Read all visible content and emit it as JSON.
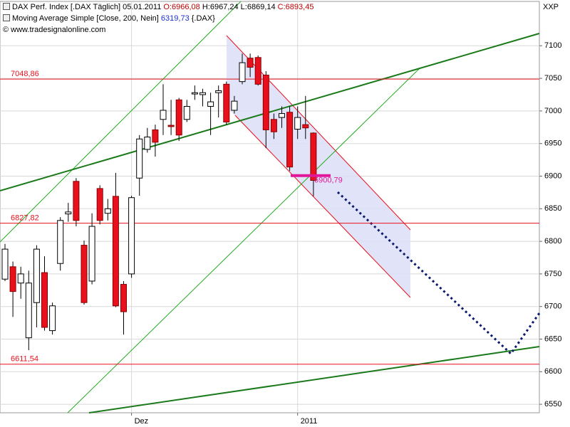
{
  "chart_data": {
    "type": "candlestick",
    "header": {
      "symbol": "DAX Perf. Index [.DAX  Täglich]",
      "date": "05.01.2011",
      "open": "O:6966,08",
      "high": "H:6967,24",
      "low": "L:6869,14",
      "close": "C:6893,45",
      "indicator": "Moving Average Simple [Close, 200, Nein]",
      "indicator_value": "6319,73",
      "indicator_symbol": "{.DAX}",
      "source": "© www.tradesignalonline.com"
    },
    "axis_label": "XXP",
    "categories": [
      null,
      null,
      null,
      null,
      null,
      null,
      null,
      null,
      null,
      null,
      null,
      null,
      null,
      null,
      null,
      null,
      "Dez",
      null,
      null,
      null,
      null,
      null,
      null,
      null,
      null,
      null,
      null,
      null,
      null,
      null,
      null,
      null,
      null,
      null,
      null,
      null,
      null,
      "2011",
      null,
      null
    ],
    "open": [
      6742,
      6761,
      6736,
      6652,
      6706,
      6752,
      6663,
      6766,
      6842,
      6892,
      6794,
      6739,
      6881,
      6843,
      6869,
      6734,
      6750,
      6897,
      6941,
      6971,
      6987,
      6978,
      7017,
      6987,
      7026,
      7025,
      7007,
      7028,
      7041,
      7001,
      7045,
      7081,
      7082,
      7055,
      6987,
      6990,
      6998,
      6972,
      6979,
      6966.08
    ],
    "high": [
      6796,
      6769,
      6761,
      6755,
      6794,
      6777,
      6706,
      6837,
      6859,
      6897,
      6801,
      6843,
      6886,
      6865,
      6905,
      6739,
      6870,
      6963,
      6974,
      6979,
      7041,
      7017,
      7020,
      7017,
      7039,
      7034,
      7028,
      7039,
      7045,
      7023,
      7088,
      7088,
      7085,
      7061,
      6996,
      7007,
      7007,
      7007,
      7023,
      6967.24
    ],
    "low": [
      6739,
      6684,
      6712,
      6633,
      6668,
      6663,
      6657,
      6755,
      6830,
      6823,
      6703,
      6734,
      6826,
      6832,
      6699,
      6657,
      6744,
      6870,
      6936,
      6930,
      6963,
      6963,
      6954,
      6983,
      7017,
      7007,
      6963,
      6990,
      6979,
      6996,
      7041,
      7052,
      7039,
      6943,
      6957,
      6974,
      6908,
      6957,
      6957,
      6869.14
    ],
    "close": [
      6788,
      6723,
      6750,
      6736,
      6788,
      6668,
      6701,
      6832,
      6845,
      6832,
      6706,
      6823,
      6832,
      6850,
      6701,
      6692,
      6867,
      6957,
      6960,
      6952,
      7001,
      6976,
      6963,
      7007,
      7028,
      7028,
      7014,
      7031,
      6983,
      7015,
      7074,
      7067,
      7041,
      6971,
      6968,
      6996,
      6914,
      6990,
      6974,
      6893.45
    ],
    "up_color": "#ffffff",
    "down_color": "#e8101c",
    "ylim": [
      6537,
      7168
    ],
    "yticks": [
      6550,
      6600,
      6650,
      6700,
      6750,
      6800,
      6850,
      6900,
      6950,
      7000,
      7050,
      7100
    ],
    "grid": true,
    "levels": [
      {
        "value": 7048.86,
        "label": "7048,86"
      },
      {
        "value": 6827.82,
        "label": "6827,82"
      },
      {
        "value": 6611.54,
        "label": "6611,54"
      }
    ],
    "level_color": "#e8101c",
    "marker": {
      "value": 6900.79,
      "label": "6900,79",
      "color": "#e0179a"
    }
  }
}
